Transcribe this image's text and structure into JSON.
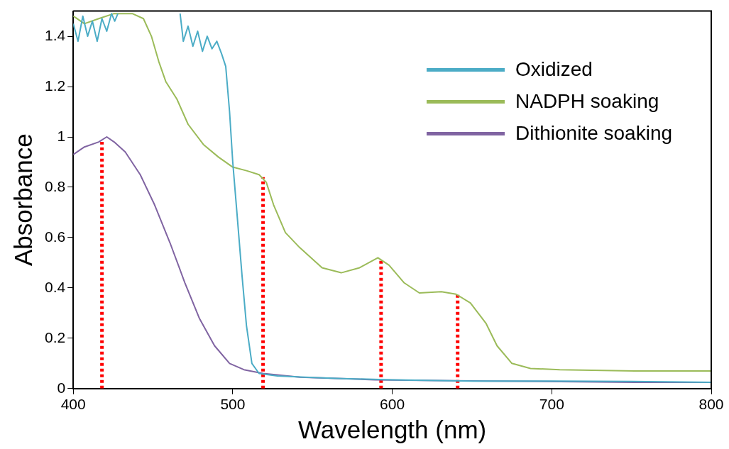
{
  "chart_data": {
    "type": "line",
    "xlabel": "Wavelength (nm)",
    "ylabel": "Absorbance",
    "xlim": [
      400,
      800
    ],
    "xticks": [
      400,
      500,
      600,
      700,
      800
    ],
    "ylim": [
      0,
      1.5
    ],
    "yticks": [
      0,
      0.2,
      0.4,
      0.6,
      0.8,
      1,
      1.2,
      1.4
    ],
    "grid": false,
    "legend": "top right",
    "marker": "none",
    "line_style": "solid",
    "series": [
      {
        "name": "Oxidized",
        "color": "#4bacc6",
        "x": [
          400,
          403,
          406,
          409,
          412,
          415,
          418,
          421,
          424,
          426,
          428,
          447,
          467,
          469,
          472,
          475,
          478,
          481,
          484,
          487,
          490,
          493,
          495.6,
          498,
          500,
          502.6,
          505.8,
          508.6,
          512,
          516.5,
          528,
          545,
          565.5,
          600,
          650,
          700,
          750,
          800
        ],
        "values": [
          1.45,
          1.38,
          1.48,
          1.4,
          1.46,
          1.38,
          1.47,
          1.42,
          1.49,
          1.46,
          1.49,
          null,
          1.49,
          1.38,
          1.44,
          1.36,
          1.42,
          1.34,
          1.4,
          1.35,
          1.38,
          1.33,
          1.28,
          1.1,
          0.9,
          0.7,
          0.45,
          0.25,
          0.1,
          0.06,
          0.05,
          0.045,
          0.04,
          0.035,
          0.03,
          0.03,
          0.028,
          0.025
        ]
      },
      {
        "name": "NADPH soaking",
        "color": "#9bbb59",
        "x": [
          400,
          407,
          416,
          425.6,
          437,
          444,
          449,
          453.6,
          458,
          465,
          472,
          481.6,
          491,
          500,
          509,
          516.5,
          521,
          525.6,
          533,
          542,
          556,
          568,
          579.5,
          591,
          598,
          607.5,
          617,
          630.8,
          640,
          649,
          658.7,
          665.7,
          675,
          686.7,
          705,
          752,
          800
        ],
        "values": [
          1.48,
          1.45,
          1.47,
          1.49,
          1.49,
          1.47,
          1.4,
          1.3,
          1.22,
          1.15,
          1.05,
          0.97,
          0.92,
          0.88,
          0.865,
          0.85,
          0.82,
          0.73,
          0.62,
          0.56,
          0.48,
          0.46,
          0.48,
          0.52,
          0.49,
          0.42,
          0.38,
          0.385,
          0.375,
          0.34,
          0.26,
          0.17,
          0.1,
          0.08,
          0.075,
          0.07,
          0.07
        ]
      },
      {
        "name": "Dithionite soaking",
        "color": "#8064a2",
        "x": [
          400,
          407,
          416,
          421,
          425.6,
          432.6,
          442,
          451,
          460.6,
          470,
          479,
          488.6,
          498,
          507,
          519,
          542,
          589,
          658.7,
          752,
          800
        ],
        "values": [
          0.93,
          0.96,
          0.98,
          1,
          0.98,
          0.94,
          0.85,
          0.73,
          0.58,
          0.42,
          0.28,
          0.17,
          0.1,
          0.075,
          0.06,
          0.045,
          0.035,
          0.03,
          0.025,
          0.025
        ]
      },
      {
        "color": "#ff0000",
        "line_style": "dotted",
        "x": [
          418,
          418
        ],
        "values": [
          0,
          0.98
        ]
      },
      {
        "color": "#ff0000",
        "line_style": "dotted",
        "x": [
          519,
          519
        ],
        "values": [
          0,
          0.84
        ]
      },
      {
        "color": "#ff0000",
        "line_style": "dotted",
        "x": [
          593,
          593
        ],
        "values": [
          0,
          0.51
        ]
      },
      {
        "color": "#ff0000",
        "line_style": "dotted",
        "x": [
          641,
          641
        ],
        "values": [
          0,
          0.38
        ]
      }
    ]
  }
}
